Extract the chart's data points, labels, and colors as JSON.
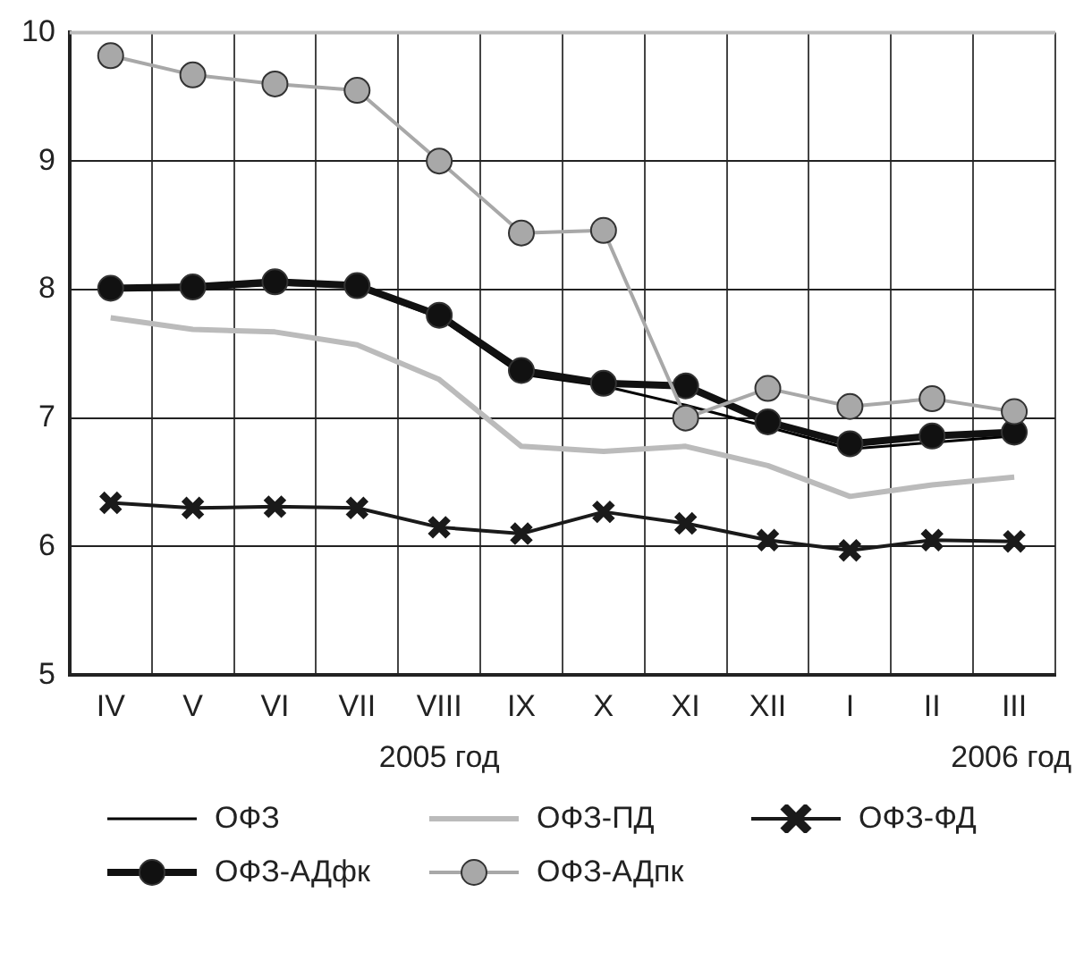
{
  "chart_data": {
    "type": "line",
    "categories": [
      "IV",
      "V",
      "VI",
      "VII",
      "VIII",
      "IX",
      "X",
      "XI",
      "XII",
      "I",
      "II",
      "III"
    ],
    "series": [
      {
        "name": "ОФЗ",
        "color": "#000000",
        "marker": "none",
        "values": [
          8.0,
          8.0,
          8.04,
          8.02,
          7.78,
          7.34,
          7.25,
          7.1,
          6.93,
          6.76,
          6.81,
          6.86
        ]
      },
      {
        "name": "ОФЗ-ПД",
        "color": "#bbbbbb",
        "marker": "none",
        "values": [
          7.78,
          7.69,
          7.67,
          7.57,
          7.3,
          6.78,
          6.74,
          6.78,
          6.63,
          6.39,
          6.48,
          6.54
        ]
      },
      {
        "name": "ОФЗ-ФД",
        "color": "#1a1a1a",
        "marker": "cross",
        "values": [
          6.34,
          6.3,
          6.31,
          6.3,
          6.15,
          6.1,
          6.27,
          6.18,
          6.05,
          5.97,
          6.05,
          6.04
        ]
      },
      {
        "name": "ОФЗ-АДфк",
        "color": "#111111",
        "marker": "circle",
        "values": [
          8.01,
          8.02,
          8.06,
          8.03,
          7.8,
          7.37,
          7.27,
          7.25,
          6.97,
          6.8,
          6.86,
          6.89
        ]
      },
      {
        "name": "ОФЗ-АДпк",
        "color": "#a8a8a8",
        "marker": "circle",
        "values": [
          9.82,
          9.67,
          9.6,
          9.55,
          9.0,
          8.44,
          8.46,
          7.0,
          7.23,
          7.09,
          7.15,
          7.05
        ]
      }
    ],
    "ylim": [
      5,
      10
    ],
    "yticks": [
      5,
      6,
      7,
      8,
      9,
      10
    ],
    "grid": true,
    "legend": "bottom",
    "line_style": "solid",
    "annotations": [
      "2005 год",
      "2006 год"
    ]
  }
}
